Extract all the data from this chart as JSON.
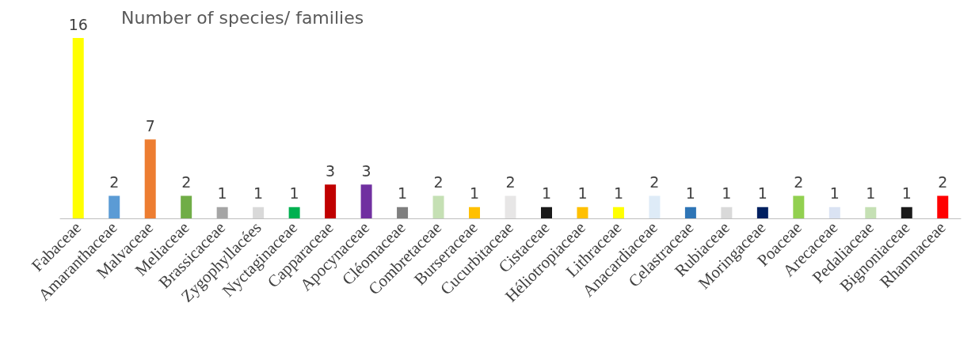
{
  "chart_data": {
    "type": "bar",
    "title": "Number of species/ families",
    "categories": [
      "Fabaceae",
      "Amaranthaceae",
      "Malvaceae",
      "Meliaceae",
      "Brassicaceae",
      "Zygophyllacées",
      "Nyctaginaceae",
      "Capparaceae",
      "Apocynaceae",
      "Cléomaceae",
      "Combretaceae",
      "Burseraceae",
      "Cucurbitaceae",
      "Cistaceae",
      "Héliotropiaceae",
      "Lithraceae",
      "Anacardiaceae",
      "Celastraceae",
      "Rubiaceae",
      "Moringaceae",
      "Poaceae",
      "Arecaceae",
      "Pedaliaceae",
      "Bignoniaceae",
      "Rhamnaceae"
    ],
    "values": [
      16,
      2,
      7,
      2,
      1,
      1,
      1,
      3,
      3,
      1,
      2,
      1,
      2,
      1,
      1,
      1,
      2,
      1,
      1,
      1,
      2,
      1,
      1,
      1,
      2
    ],
    "colors": [
      "#ffff00",
      "#5b9bd5",
      "#ed7d31",
      "#70ad47",
      "#a5a5a5",
      "#d9d9d9",
      "#00b050",
      "#c00000",
      "#7030a0",
      "#7f7f7f",
      "#c5e0b4",
      "#ffc000",
      "#e7e6e6",
      "#1a1a1a",
      "#ffc000",
      "#ffff00",
      "#deebf7",
      "#2e75b6",
      "#d9d9d9",
      "#002060",
      "#92d050",
      "#dae3f3",
      "#c5e0b4",
      "#1a1a1a",
      "#ff0000"
    ],
    "data_labels": true
  }
}
